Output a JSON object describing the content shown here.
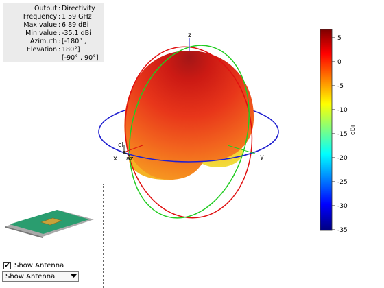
{
  "info_panel": {
    "rows": [
      {
        "key": "Output",
        "value": "Directivity"
      },
      {
        "key": "Frequency",
        "value": "1.59 GHz"
      },
      {
        "key": "Max value",
        "value": "6.89 dBi"
      },
      {
        "key": "Min value",
        "value": "-35.1 dBi"
      },
      {
        "key": "Azimuth",
        "value": "[-180° ,"
      },
      {
        "key": "Elevation",
        "value": "180°]"
      },
      {
        "key": "",
        "value": "[-90° , 90°]"
      }
    ]
  },
  "axes": {
    "x_label": "x",
    "y_label": "y",
    "z_label": "z",
    "el_label": "el",
    "az_label": "az"
  },
  "colorbar": {
    "ticks": [
      "5",
      "0",
      "-5",
      "-10",
      "-15",
      "-20",
      "-25",
      "-30",
      "-35"
    ],
    "unit": "dBi",
    "range": [
      -35,
      6.89
    ]
  },
  "controls": {
    "show_antenna_checkbox": {
      "label": "Show Antenna",
      "checked": true
    },
    "antenna_dropdown": {
      "selected": "Show Antenna"
    }
  },
  "colors": {
    "elevation_ring": "#e01010",
    "azimuth_ring": "#1f1fcf",
    "meridian_ring": "#22cc22",
    "antenna_board": "#2a9d6f",
    "patch": "#c8a23a"
  }
}
